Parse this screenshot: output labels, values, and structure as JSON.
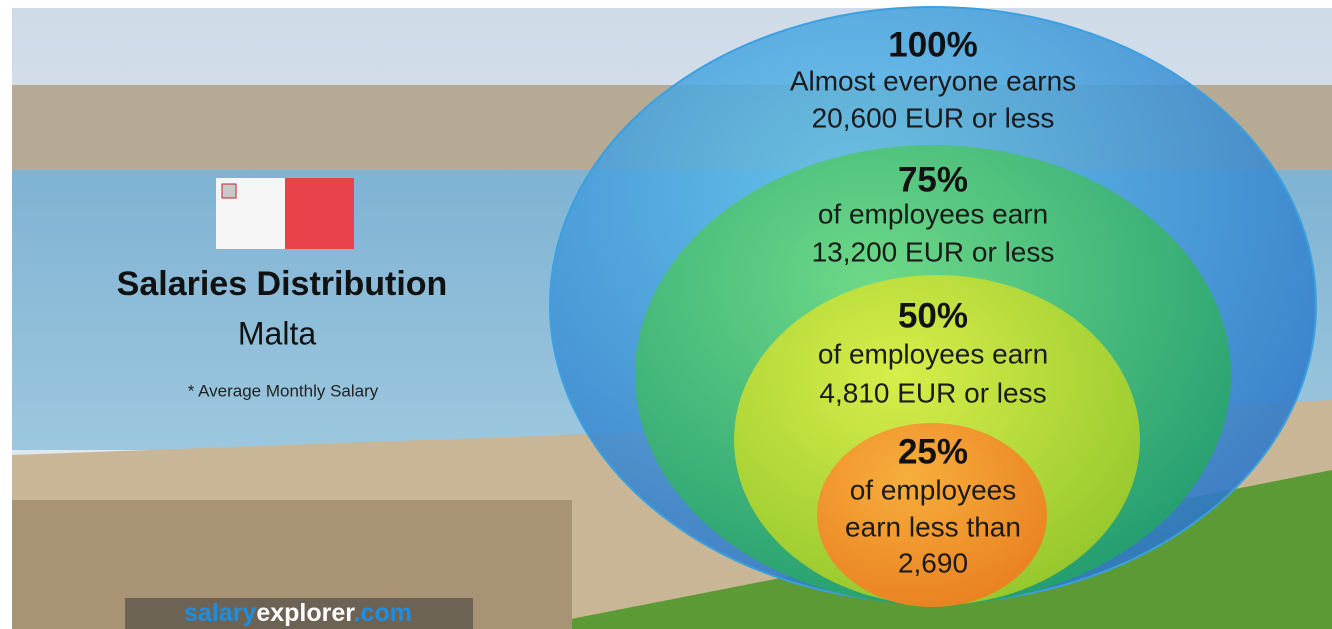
{
  "header": {
    "title": "Salaries Distribution",
    "location": "Malta",
    "note": "* Average Monthly Salary"
  },
  "levels": [
    {
      "percent": "100%",
      "lines": [
        "Almost everyone earns",
        "20,600 EUR or less"
      ]
    },
    {
      "percent": "75%",
      "lines": [
        "of employees earn",
        "13,200 EUR or less"
      ]
    },
    {
      "percent": "50%",
      "lines": [
        "of employees earn",
        "4,810 EUR or less"
      ]
    },
    {
      "percent": "25%",
      "lines": [
        "of employees",
        "earn less than",
        "2,690"
      ]
    }
  ],
  "logo": {
    "part1": "salary",
    "part2": "explorer",
    "part3": ".com"
  }
}
